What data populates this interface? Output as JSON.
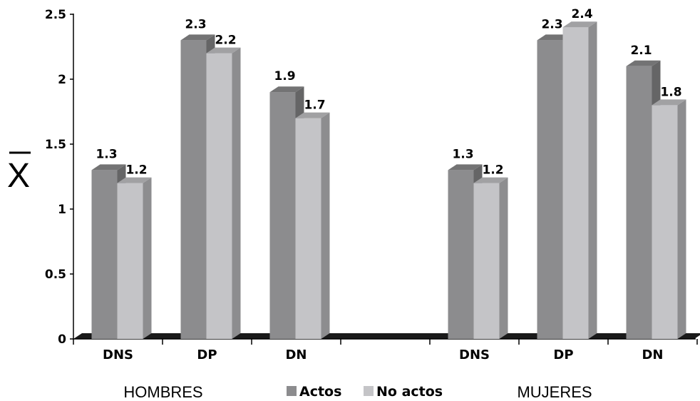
{
  "chart_data": {
    "type": "bar",
    "ylabel": "X̄",
    "ylim": [
      0,
      2.5
    ],
    "yticks": [
      "0",
      "0.5",
      "1",
      "1.5",
      "2",
      "2.5"
    ],
    "groups": [
      {
        "label": "HOMBRES",
        "categories": [
          "DNS",
          "DP",
          "DN"
        ],
        "series": [
          {
            "name": "Actos",
            "values": [
              1.3,
              2.3,
              1.9
            ]
          },
          {
            "name": "No actos",
            "values": [
              1.2,
              2.2,
              1.7
            ]
          }
        ]
      },
      {
        "label": "MUJERES",
        "categories": [
          "DNS",
          "DP",
          "DN"
        ],
        "series": [
          {
            "name": "Actos",
            "values": [
              1.3,
              2.3,
              2.1
            ]
          },
          {
            "name": "No actos",
            "values": [
              1.2,
              2.4,
              1.8
            ]
          }
        ]
      }
    ],
    "legend": {
      "position": "bottom",
      "items": [
        "Actos",
        "No actos"
      ]
    },
    "colors": {
      "Actos": "#8c8c8e",
      "No actos": "#c4c4c7",
      "floor": "#1a1a1a"
    },
    "grid": false
  }
}
